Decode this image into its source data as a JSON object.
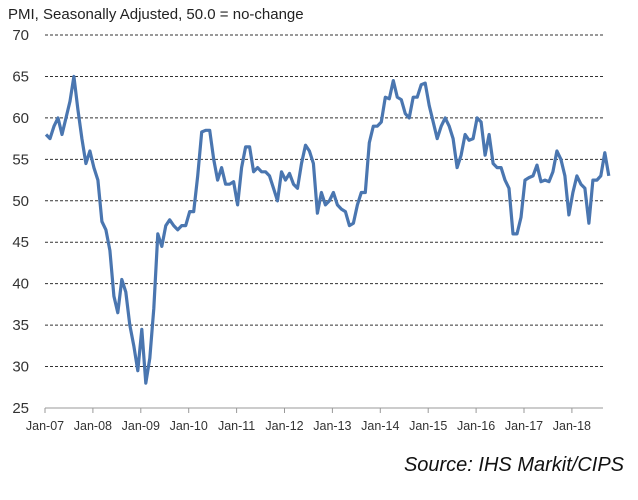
{
  "chart_data": {
    "type": "line",
    "title": "PMI, Seasonally Adjusted, 50.0 = no-change",
    "source": "Source: IHS Markit/CIPS",
    "xlabel": "",
    "ylabel": "",
    "ylim": [
      25,
      70
    ],
    "yticks": [
      25,
      30,
      35,
      40,
      45,
      50,
      55,
      60,
      65,
      70
    ],
    "xticks": [
      "Jan-07",
      "Jan-08",
      "Jan-09",
      "Jan-10",
      "Jan-11",
      "Jan-12",
      "Jan-13",
      "Jan-14",
      "Jan-15",
      "Jan-16",
      "Jan-17",
      "Jan-18"
    ],
    "grid": true,
    "frequency": "monthly",
    "start": "Jan-07",
    "series": [
      {
        "name": "PMI",
        "color": "#4a76b0",
        "values": [
          58,
          57.5,
          59,
          60,
          58,
          60,
          62,
          65,
          61,
          57.5,
          54.5,
          56,
          54,
          52.5,
          47.5,
          46.5,
          44,
          38.5,
          36.5,
          40.5,
          39,
          35,
          32.5,
          29.5,
          34.5,
          28,
          31,
          37,
          46,
          44.5,
          47,
          47.7,
          47,
          46.5,
          47,
          47,
          48.7,
          48.7,
          53,
          58.3,
          58.5,
          58.5,
          55,
          52.5,
          54,
          52,
          52,
          52.3,
          49.5,
          54,
          56.5,
          56.5,
          53.5,
          54,
          53.5,
          53.5,
          53,
          51.5,
          50,
          53.5,
          52.5,
          53.3,
          52,
          51.5,
          54.5,
          56.7,
          56,
          54.5,
          48.5,
          51,
          49.5,
          50,
          51,
          49.5,
          49,
          48.7,
          47,
          47.3,
          49.5,
          51,
          51,
          57,
          59,
          59,
          59.5,
          62.5,
          62.3,
          64.5,
          62.5,
          62.2,
          60.5,
          60,
          62.5,
          62.5,
          64,
          64.2,
          61.5,
          59.5,
          57.5,
          59,
          60,
          59,
          57.5,
          54,
          55.5,
          58,
          57.3,
          57.5,
          60,
          59.5,
          55.5,
          58,
          54.5,
          54,
          54,
          52.5,
          51.5,
          46,
          46,
          48,
          52.5,
          52.8,
          53,
          54.3,
          52.3,
          52.5,
          52.3,
          53.5,
          56,
          55,
          53,
          48.3,
          51,
          53,
          52,
          51.5,
          47.3,
          52.5,
          52.5,
          53,
          55.8,
          53
        ]
      }
    ]
  }
}
